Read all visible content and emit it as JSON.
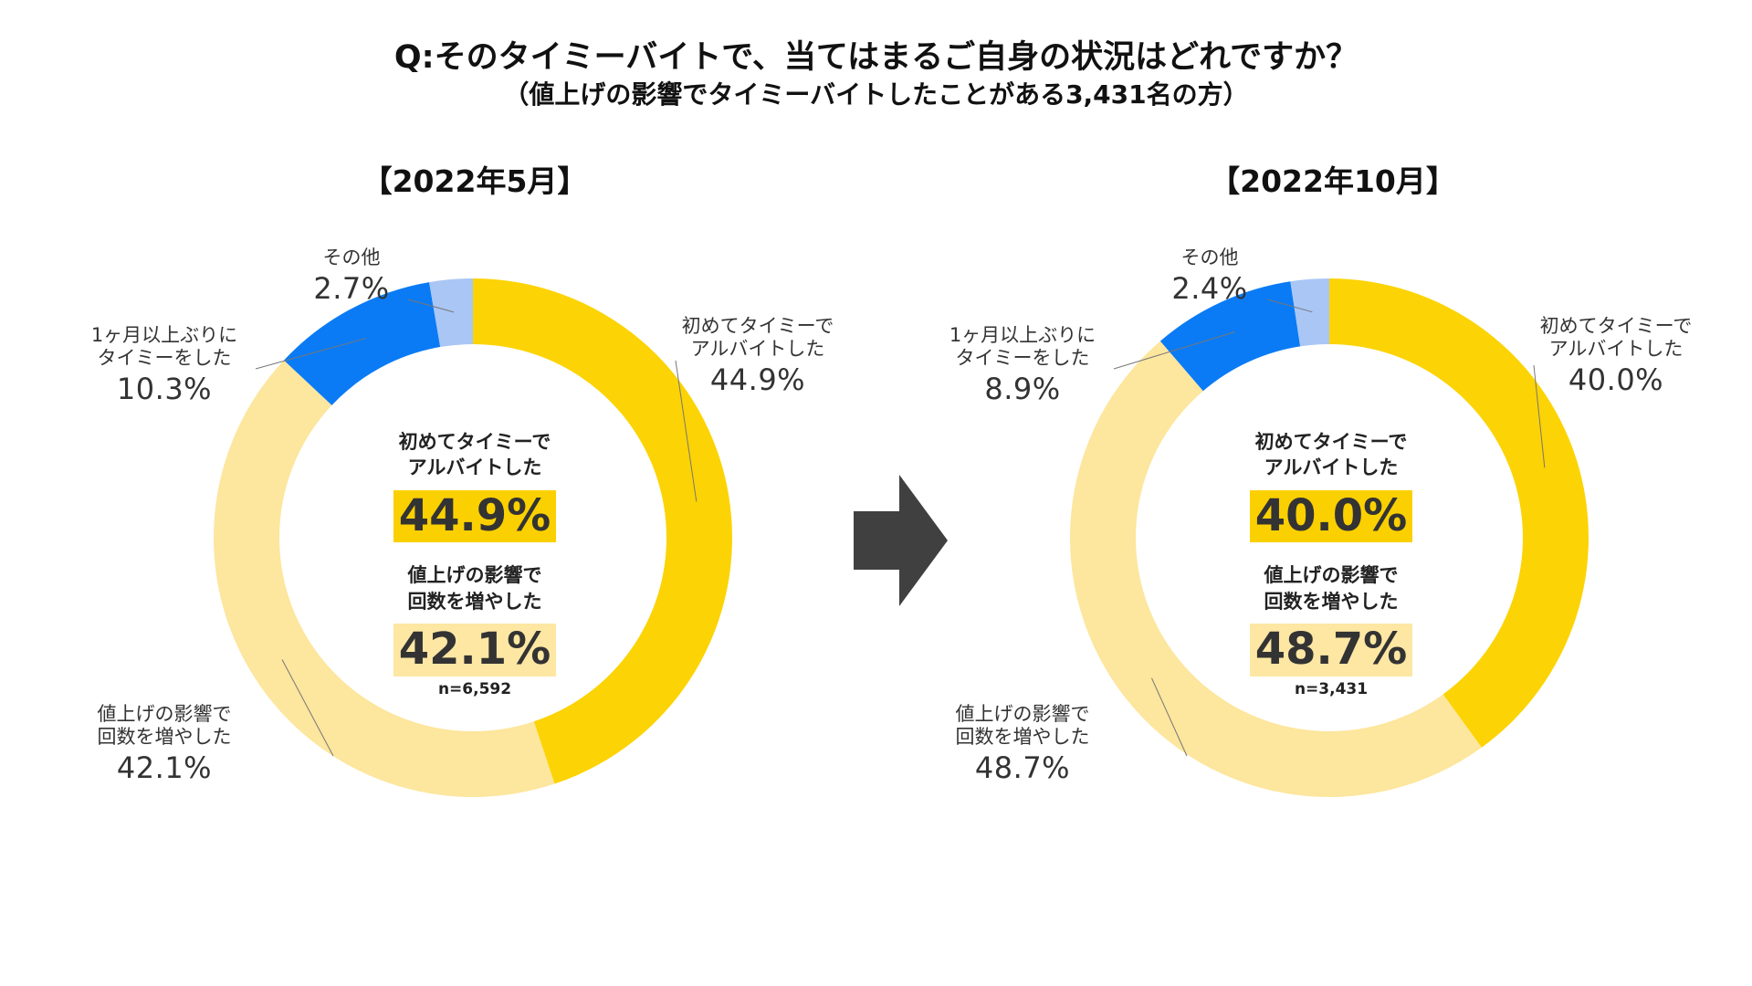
{
  "title": "Q:そのタイミーバイトで、当てはまるご自身の状況はどれですか？",
  "subtitle": "（値上げの影響でタイミーバイトしたことがある3,431名の方）",
  "arrow_icon": "right-arrow-icon",
  "colors": {
    "first_time": "#FCD304",
    "increased": "#FDE69D",
    "first_in_month": "#0A7BF5",
    "other": "#A9C6F5"
  },
  "chart_data": [
    {
      "type": "pie",
      "variant": "donut",
      "title": "【2022年5月】",
      "n_label": "n=6,592",
      "slices": [
        {
          "key": "first_time",
          "label": "初めてタイミーでアルバイトした",
          "label_lines": [
            "初めてタイミーで",
            "アルバイトした"
          ],
          "value": 44.9,
          "value_label": "44.9%"
        },
        {
          "key": "increased",
          "label": "値上げの影響で回数を増やした",
          "label_lines": [
            "値上げの影響で",
            "回数を増やした"
          ],
          "value": 42.1,
          "value_label": "42.1%"
        },
        {
          "key": "first_in_month",
          "label": "1ヶ月以上ぶりにタイミーをした",
          "label_lines": [
            "1ヶ月以上ぶりに",
            "タイミーをした"
          ],
          "value": 10.3,
          "value_label": "10.3%"
        },
        {
          "key": "other",
          "label": "その他",
          "label_lines": [
            "その他"
          ],
          "value": 2.7,
          "value_label": "2.7%"
        }
      ],
      "center": [
        {
          "lines": [
            "初めてタイミーで",
            "アルバイトした"
          ],
          "value_label": "44.9%"
        },
        {
          "lines": [
            "値上げの影響で",
            "回数を増やした"
          ],
          "value_label": "42.1%"
        }
      ]
    },
    {
      "type": "pie",
      "variant": "donut",
      "title": "【2022年10月】",
      "n_label": "n=3,431",
      "slices": [
        {
          "key": "first_time",
          "label": "初めてタイミーでアルバイトした",
          "label_lines": [
            "初めてタイミーで",
            "アルバイトした"
          ],
          "value": 40.0,
          "value_label": "40.0%"
        },
        {
          "key": "increased",
          "label": "値上げの影響で回数を増やした",
          "label_lines": [
            "値上げの影響で",
            "回数を増やした"
          ],
          "value": 48.7,
          "value_label": "48.7%"
        },
        {
          "key": "first_in_month",
          "label": "1ヶ月以上ぶりにタイミーをした",
          "label_lines": [
            "1ヶ月以上ぶりに",
            "タイミーをした"
          ],
          "value": 8.9,
          "value_label": "8.9%"
        },
        {
          "key": "other",
          "label": "その他",
          "label_lines": [
            "その他"
          ],
          "value": 2.4,
          "value_label": "2.4%"
        }
      ],
      "center": [
        {
          "lines": [
            "初めてタイミーで",
            "アルバイトした"
          ],
          "value_label": "40.0%"
        },
        {
          "lines": [
            "値上げの影響で",
            "回数を増やした"
          ],
          "value_label": "48.7%"
        }
      ]
    }
  ]
}
